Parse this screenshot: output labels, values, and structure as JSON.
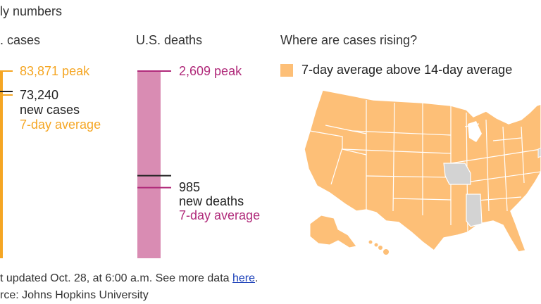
{
  "header": {
    "title_fragment": "ly numbers"
  },
  "cases_panel": {
    "title_fragment": ". cases",
    "peak_label": "83,871 peak",
    "current_value": "73,240",
    "current_line1": "new cases",
    "current_line2": "7-day average",
    "bar_color": "#f5a623"
  },
  "deaths_panel": {
    "title": "U.S. deaths",
    "peak_label": "2,609 peak",
    "current_value": "985",
    "current_line1": "new deaths",
    "current_line2": "7-day average",
    "bar_color": "#d98cb3",
    "accent_color": "#b02a7a"
  },
  "map_panel": {
    "title": "Where are cases rising?",
    "legend_label": "7-day average above 14-day average",
    "rising_color": "#fdbf77",
    "not_rising_color": "#d3d3d3"
  },
  "footer": {
    "updated_text": "t updated Oct. 28, at 6:00 a.m. See more data ",
    "link_text": "here",
    "period": ".",
    "source_text": "rce: Johns Hopkins University"
  },
  "chart_data": [
    {
      "type": "bar",
      "title": "U.S. cases",
      "peak": 83871,
      "current": 73240,
      "current_label": "new cases 7-day average"
    },
    {
      "type": "bar",
      "title": "U.S. deaths",
      "peak": 2609,
      "current": 985,
      "current_label": "new deaths 7-day average",
      "ylim": [
        0,
        2609
      ]
    }
  ]
}
